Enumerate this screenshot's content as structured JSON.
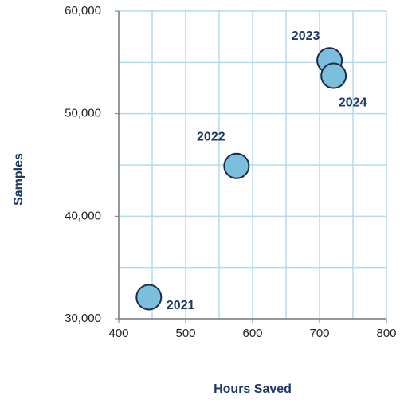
{
  "chart_data": {
    "type": "scatter",
    "x_label": "Hours Saved",
    "y_label": "Samples",
    "labels": [
      "2021",
      "2022",
      "2023",
      "2024"
    ],
    "x": [
      445,
      576,
      715,
      721
    ],
    "values": [
      32100,
      44900,
      55200,
      53700
    ],
    "color": "#7bbfdc",
    "xlim": [
      400,
      800
    ],
    "xticks": [
      400,
      500,
      600,
      700,
      800
    ],
    "ylim": [
      30000,
      60000
    ],
    "yticks": [
      {
        "value": 30000,
        "label": "30,000"
      },
      {
        "value": 40000,
        "label": "40,000"
      },
      {
        "value": 50000,
        "label": "50,000"
      },
      {
        "value": 60000,
        "label": "60,000"
      }
    ],
    "xgrid": [
      450,
      500,
      550,
      600,
      650,
      700,
      750,
      800
    ],
    "ygrid": [
      35000,
      40000,
      45000,
      50000,
      55000,
      60000
    ],
    "grid": true
  }
}
